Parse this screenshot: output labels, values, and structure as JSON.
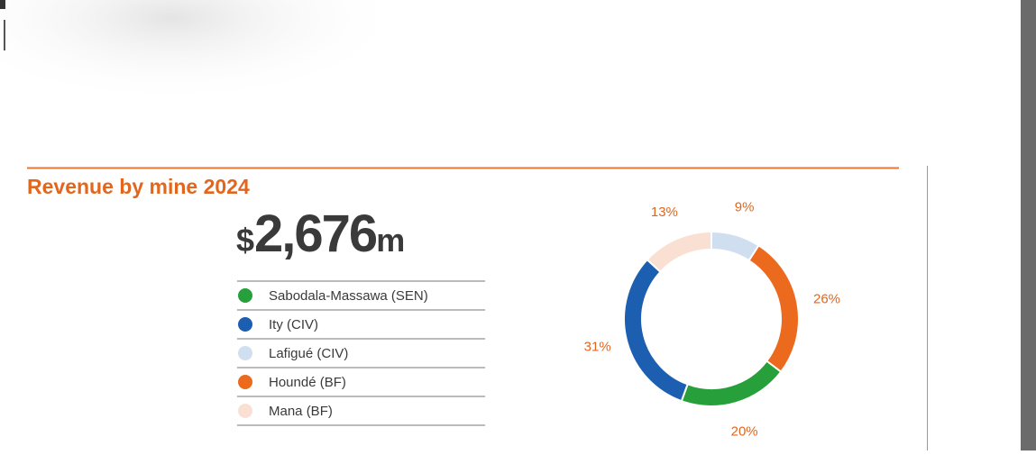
{
  "chart_data": {
    "type": "pie",
    "title": "Revenue by mine 2024",
    "total": {
      "prefix": "$",
      "number": "2,676",
      "suffix": "m"
    },
    "categories": [
      "Sabodala-Massawa (SEN)",
      "Ity (CIV)",
      "Lafigué (CIV)",
      "Houndé (BF)",
      "Mana (BF)"
    ],
    "values": [
      20,
      31,
      9,
      26,
      13
    ],
    "value_labels": [
      "20%",
      "31%",
      "9%",
      "26%",
      "13%"
    ],
    "colors": [
      "#27a03c",
      "#1c5fb0",
      "#d0dff0",
      "#ec6a1e",
      "#fae0d3"
    ],
    "donut": true
  }
}
